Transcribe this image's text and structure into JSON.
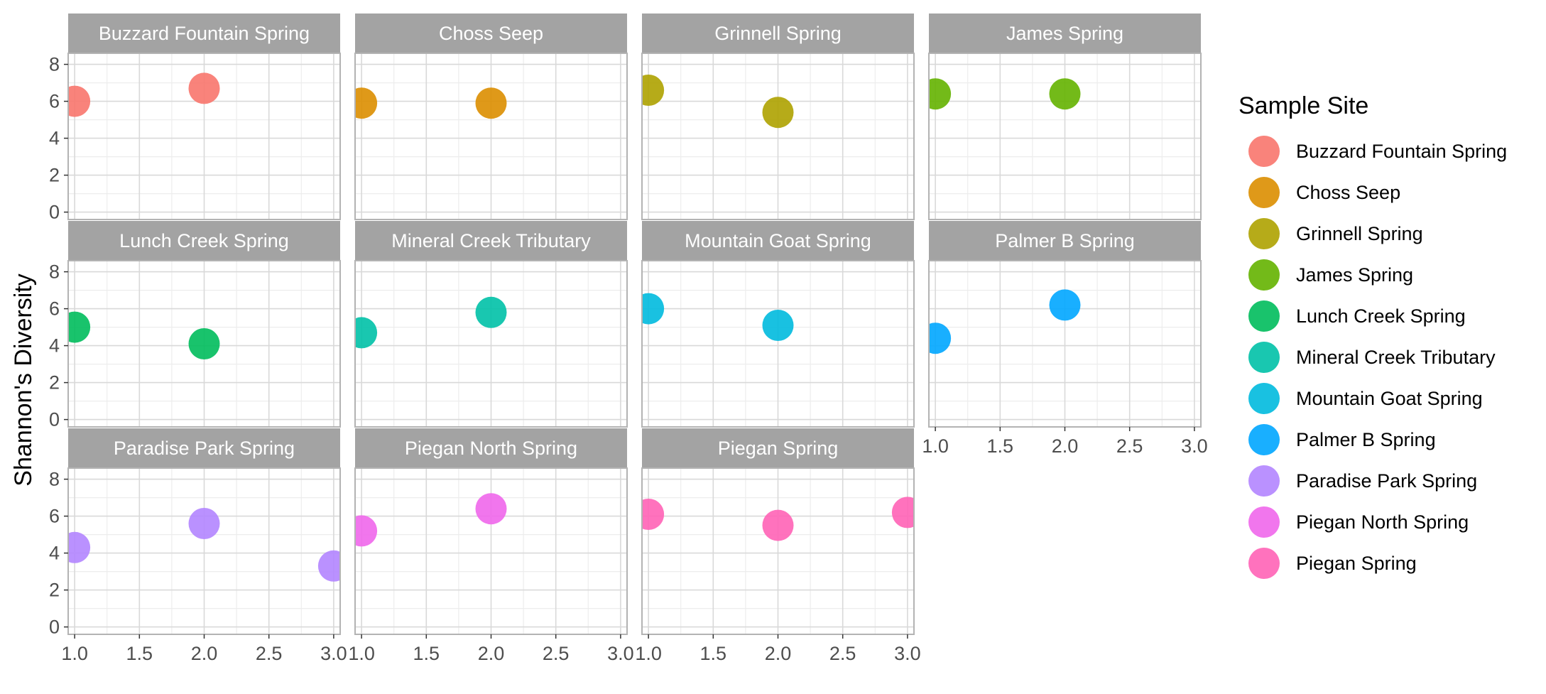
{
  "chart_data": {
    "type": "scatter",
    "facet_layout": "facet_wrap, 4 columns, shared axes",
    "ylabel": "Shannon's Diversity",
    "xlabel": "",
    "xlim": [
      0.95,
      3.05
    ],
    "ylim": [
      -0.4,
      8.6
    ],
    "x_ticks": [
      1.0,
      1.5,
      2.0,
      2.5,
      3.0
    ],
    "x_tick_labels": [
      "1.0",
      "1.5",
      "2.0",
      "2.5",
      "3.0"
    ],
    "y_ticks": [
      0,
      2,
      4,
      6,
      8
    ],
    "y_tick_labels": [
      "0",
      "2",
      "4",
      "6",
      "8"
    ],
    "grid": true,
    "legend": {
      "title": "Sample Site",
      "placement": "right"
    },
    "facets": [
      {
        "name": "Buzzard Fountain Spring",
        "color": "#F8766D",
        "points": [
          {
            "x": 1,
            "y": 6.0
          },
          {
            "x": 2,
            "y": 6.7
          }
        ]
      },
      {
        "name": "Choss Seep",
        "color": "#DB8E00",
        "points": [
          {
            "x": 1,
            "y": 5.9
          },
          {
            "x": 2,
            "y": 5.9
          }
        ]
      },
      {
        "name": "Grinnell Spring",
        "color": "#AEA200",
        "points": [
          {
            "x": 1,
            "y": 6.6
          },
          {
            "x": 2,
            "y": 5.4
          }
        ]
      },
      {
        "name": "James Spring",
        "color": "#64B200",
        "points": [
          {
            "x": 1,
            "y": 6.4
          },
          {
            "x": 2,
            "y": 6.4
          }
        ]
      },
      {
        "name": "Lunch Creek Spring",
        "color": "#00BD5C",
        "points": [
          {
            "x": 1,
            "y": 5.0
          },
          {
            "x": 2,
            "y": 4.1
          }
        ]
      },
      {
        "name": "Mineral Creek Tributary",
        "color": "#00C1A7",
        "points": [
          {
            "x": 1,
            "y": 4.7
          },
          {
            "x": 2,
            "y": 5.8
          }
        ]
      },
      {
        "name": "Mountain Goat Spring",
        "color": "#00BADE",
        "points": [
          {
            "x": 1,
            "y": 6.0
          },
          {
            "x": 2,
            "y": 5.1
          }
        ]
      },
      {
        "name": "Palmer B Spring",
        "color": "#00A6FF",
        "points": [
          {
            "x": 1,
            "y": 4.4
          },
          {
            "x": 2,
            "y": 6.2
          }
        ]
      },
      {
        "name": "Paradise Park Spring",
        "color": "#B385FF",
        "points": [
          {
            "x": 1,
            "y": 4.3
          },
          {
            "x": 2,
            "y": 5.6
          },
          {
            "x": 3,
            "y": 3.3
          }
        ]
      },
      {
        "name": "Piegan North Spring",
        "color": "#EF67EB",
        "points": [
          {
            "x": 1,
            "y": 5.2
          },
          {
            "x": 2,
            "y": 6.4
          }
        ]
      },
      {
        "name": "Piegan Spring",
        "color": "#FF63B6",
        "points": [
          {
            "x": 1,
            "y": 6.1
          },
          {
            "x": 2,
            "y": 5.5
          },
          {
            "x": 3,
            "y": 6.2
          }
        ]
      }
    ]
  },
  "colors": {
    "strip_background": "#A3A3A3",
    "panel_border": "#B3B3B3",
    "grid_major": "#D9D9D9",
    "grid_minor": "#EDEDED",
    "tick_text": "#4D4D4D"
  }
}
